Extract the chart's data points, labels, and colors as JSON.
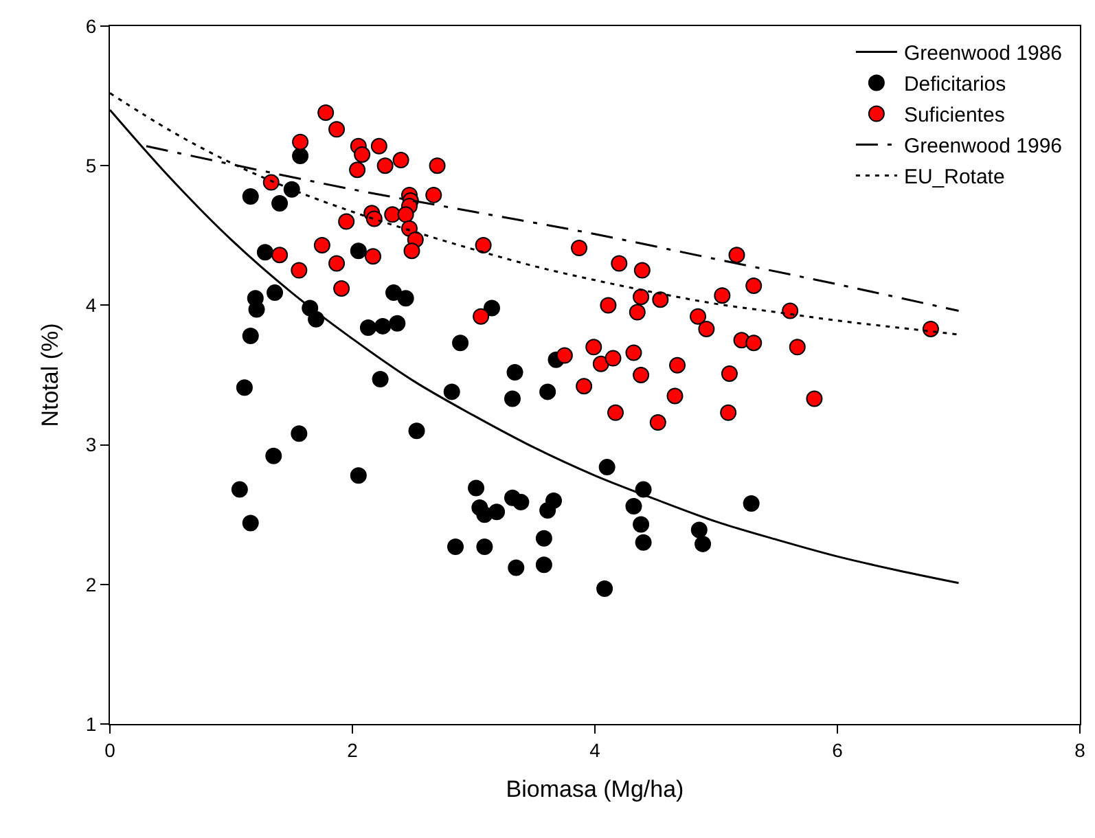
{
  "chart_data": {
    "type": "scatter",
    "xlabel": "Biomasa (Mg/ha)",
    "ylabel": "Ntotal (%)",
    "xlim": [
      0,
      8
    ],
    "ylim": [
      1,
      6
    ],
    "xticks": [
      0,
      2,
      4,
      6,
      8
    ],
    "yticks": [
      1,
      2,
      3,
      4,
      5,
      6
    ],
    "legend": "top right",
    "series": [
      {
        "name": "Greenwood 1986",
        "type": "line",
        "color": "#000000",
        "line_style": "solid",
        "marker": "none",
        "x": [
          0,
          0.5,
          1,
          1.5,
          2,
          2.5,
          3,
          3.5,
          4,
          4.5,
          5,
          5.5,
          6,
          6.5,
          7
        ],
        "values": [
          5.4,
          4.91,
          4.47,
          4.09,
          3.76,
          3.46,
          3.21,
          2.98,
          2.78,
          2.61,
          2.45,
          2.32,
          2.2,
          2.1,
          2.01
        ]
      },
      {
        "name": "Deficitarios",
        "color": "#000000",
        "marker": "circle",
        "x": [
          1.57,
          1.16,
          1.5,
          1.4,
          1.28,
          2.05,
          1.2,
          1.21,
          1.36,
          1.16,
          1.65,
          1.7,
          2.34,
          2.44,
          2.13,
          2.25,
          2.37,
          1.11,
          2.23,
          1.56,
          1.35,
          1.07,
          1.16,
          2.05,
          2.53,
          3.15,
          2.89,
          2.82,
          3.34,
          3.32,
          3.61,
          3.68,
          4.1,
          4.4,
          4.32,
          4.38,
          4.4,
          4.86,
          4.89,
          3.02,
          3.05,
          3.09,
          3.19,
          3.32,
          3.39,
          3.66,
          3.61,
          3.58,
          3.58,
          2.85,
          3.09,
          3.35,
          4.08,
          5.29
        ],
        "values": [
          5.07,
          4.78,
          4.83,
          4.73,
          4.38,
          4.39,
          4.05,
          3.97,
          4.09,
          3.78,
          3.98,
          3.9,
          4.09,
          4.05,
          3.84,
          3.85,
          3.87,
          3.41,
          3.47,
          3.08,
          2.92,
          2.68,
          2.44,
          2.78,
          3.1,
          3.98,
          3.73,
          3.38,
          3.52,
          3.33,
          3.38,
          3.61,
          2.84,
          2.68,
          2.56,
          2.43,
          2.3,
          2.39,
          2.29,
          2.69,
          2.55,
          2.5,
          2.52,
          2.62,
          2.59,
          2.6,
          2.53,
          2.33,
          2.14,
          2.27,
          2.27,
          2.12,
          1.97,
          2.58
        ]
      },
      {
        "name": "Suficientes",
        "color": "#ff0000",
        "marker": "circle",
        "x": [
          1.78,
          1.87,
          1.57,
          2.05,
          2.08,
          2.22,
          2.04,
          2.27,
          2.4,
          2.7,
          1.33,
          2.47,
          2.67,
          2.48,
          2.47,
          2.16,
          2.18,
          2.33,
          2.44,
          1.95,
          2.47,
          2.52,
          2.49,
          1.75,
          1.4,
          2.17,
          1.87,
          1.56,
          1.91,
          3.08,
          3.87,
          4.2,
          4.39,
          4.38,
          4.54,
          5.05,
          4.11,
          4.35,
          4.85,
          4.92,
          3.06,
          3.75,
          3.99,
          4.05,
          4.15,
          4.32,
          4.38,
          4.68,
          4.66,
          3.91,
          4.17,
          4.52,
          5.17,
          5.31,
          5.61,
          6.77,
          5.21,
          5.31,
          5.67,
          5.11,
          5.81,
          5.1
        ],
        "values": [
          5.38,
          5.26,
          5.17,
          5.14,
          5.08,
          5.14,
          4.97,
          5.0,
          5.04,
          5.0,
          4.88,
          4.79,
          4.79,
          4.75,
          4.71,
          4.66,
          4.62,
          4.65,
          4.65,
          4.6,
          4.55,
          4.47,
          4.39,
          4.43,
          4.36,
          4.35,
          4.3,
          4.25,
          4.12,
          4.43,
          4.41,
          4.3,
          4.25,
          4.06,
          4.04,
          4.07,
          4.0,
          3.95,
          3.92,
          3.83,
          3.92,
          3.64,
          3.7,
          3.58,
          3.62,
          3.66,
          3.5,
          3.57,
          3.35,
          3.42,
          3.23,
          3.16,
          4.36,
          4.14,
          3.96,
          3.83,
          3.75,
          3.73,
          3.7,
          3.51,
          3.33,
          3.23
        ]
      },
      {
        "name": "Greenwood 1996",
        "type": "line",
        "color": "#000000",
        "line_style": "dashed",
        "marker": "none",
        "x": [
          0.3,
          1,
          2,
          3,
          4,
          5,
          6,
          7
        ],
        "values": [
          5.14,
          5.01,
          4.83,
          4.67,
          4.51,
          4.33,
          4.15,
          3.96
        ]
      },
      {
        "name": "EU_Rotate",
        "type": "line",
        "color": "#000000",
        "line_style": "dotted",
        "marker": "none",
        "x": [
          0,
          0.5,
          1,
          1.5,
          2,
          2.5,
          3,
          3.5,
          4,
          4.5,
          5,
          5.5,
          6,
          6.5,
          7
        ],
        "values": [
          5.52,
          5.25,
          5.02,
          4.83,
          4.67,
          4.53,
          4.4,
          4.28,
          4.18,
          4.09,
          4.01,
          3.95,
          3.89,
          3.84,
          3.79
        ]
      }
    ]
  }
}
